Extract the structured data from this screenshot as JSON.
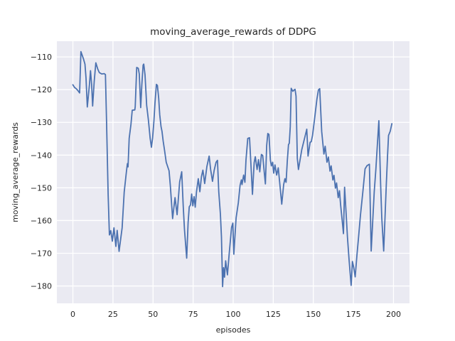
{
  "window": {
    "title": "moving_average_rewards of DDPG"
  },
  "colors": {
    "figure_background": "#ffffff",
    "axes_background": "#eaeaf2",
    "gridline": "#ffffff",
    "line": "#4c72b0",
    "text": "#262626"
  },
  "chart_data": {
    "type": "line",
    "title": "moving_average_rewards of DDPG",
    "xlabel": "episodes",
    "ylabel": "moving_average_rewards",
    "legend": null,
    "grid": true,
    "xlim": [
      -10,
      210
    ],
    "ylim": [
      -185.3,
      -105.2
    ],
    "x_ticks": [
      0,
      25,
      50,
      75,
      100,
      125,
      150,
      175,
      200
    ],
    "x_tick_labels": [
      "0",
      "25",
      "50",
      "75",
      "100",
      "125",
      "150",
      "175",
      "200"
    ],
    "y_ticks": [
      -110,
      -120,
      -130,
      -140,
      -150,
      -160,
      -170,
      -180
    ],
    "y_tick_labels": [
      "−110",
      "−120",
      "−130",
      "−140",
      "−150",
      "−160",
      "−170",
      "−180"
    ],
    "series": [
      {
        "name": "moving_average_rewards",
        "color": "#4c72b0",
        "line_width": 1.8,
        "points": [
          [
            0,
            -118.5
          ],
          [
            1,
            -119.3
          ],
          [
            2,
            -119.7
          ],
          [
            3,
            -120.2
          ],
          [
            4.2,
            -121.0
          ],
          [
            5,
            -108.4
          ],
          [
            6,
            -109.8
          ],
          [
            6.6,
            -110.6
          ],
          [
            7.5,
            -112.2
          ],
          [
            8.2,
            -116.5
          ],
          [
            9,
            -125.3
          ],
          [
            10.3,
            -118.5
          ],
          [
            11,
            -114.2
          ],
          [
            11.7,
            -118.5
          ],
          [
            12.3,
            -125.0
          ],
          [
            13.3,
            -117.5
          ],
          [
            14.3,
            -111.8
          ],
          [
            15.5,
            -113.7
          ],
          [
            16.5,
            -114.8
          ],
          [
            18,
            -115.2
          ],
          [
            19.5,
            -115.1
          ],
          [
            20.3,
            -115.4
          ],
          [
            21,
            -130.0
          ],
          [
            22,
            -152.0
          ],
          [
            22.8,
            -164.4
          ],
          [
            23.6,
            -163.1
          ],
          [
            24.6,
            -166.3
          ],
          [
            25.6,
            -162.2
          ],
          [
            26.8,
            -167.9
          ],
          [
            27.6,
            -163.0
          ],
          [
            28.8,
            -169.4
          ],
          [
            29.8,
            -165.7
          ],
          [
            30.7,
            -162.2
          ],
          [
            32,
            -151.3
          ],
          [
            33.4,
            -145.1
          ],
          [
            34,
            -142.6
          ],
          [
            34.4,
            -143.6
          ],
          [
            35.1,
            -134.9
          ],
          [
            36.2,
            -130.6
          ],
          [
            37,
            -126.3
          ],
          [
            38.6,
            -126.2
          ],
          [
            38.9,
            -125.2
          ],
          [
            39.8,
            -113.2
          ],
          [
            40.8,
            -113.5
          ],
          [
            41.4,
            -115.2
          ],
          [
            42.3,
            -125.5
          ],
          [
            43,
            -118.5
          ],
          [
            43.8,
            -112.5
          ],
          [
            44.2,
            -112.2
          ],
          [
            45,
            -115.5
          ],
          [
            46,
            -124.8
          ],
          [
            47.1,
            -129.2
          ],
          [
            48.2,
            -134.9
          ],
          [
            49,
            -137.6
          ],
          [
            49.7,
            -134.9
          ],
          [
            50.5,
            -129.9
          ],
          [
            51.2,
            -124.1
          ],
          [
            52.1,
            -118.4
          ],
          [
            52.7,
            -118.7
          ],
          [
            53.5,
            -122.6
          ],
          [
            54.2,
            -127.7
          ],
          [
            55,
            -131.3
          ],
          [
            55.6,
            -132.8
          ],
          [
            56.3,
            -135.7
          ],
          [
            57.2,
            -138.6
          ],
          [
            58.2,
            -142.2
          ],
          [
            59.1,
            -143.5
          ],
          [
            60,
            -144.8
          ],
          [
            60.8,
            -149.4
          ],
          [
            62.2,
            -159.4
          ],
          [
            63.7,
            -153.0
          ],
          [
            65,
            -158.2
          ],
          [
            66.6,
            -148.2
          ],
          [
            67.9,
            -145.1
          ],
          [
            68.8,
            -155.5
          ],
          [
            69.6,
            -162.8
          ],
          [
            71,
            -171.5
          ],
          [
            71.9,
            -160.6
          ],
          [
            72.6,
            -155.8
          ],
          [
            73.4,
            -155.2
          ],
          [
            74.1,
            -151.9
          ],
          [
            74.8,
            -155.5
          ],
          [
            75.6,
            -152.7
          ],
          [
            76.3,
            -155.9
          ],
          [
            77.1,
            -151.2
          ],
          [
            78.2,
            -147.2
          ],
          [
            79.2,
            -151.2
          ],
          [
            80.2,
            -146.5
          ],
          [
            81.1,
            -144.6
          ],
          [
            82.2,
            -148.7
          ],
          [
            83.6,
            -143.5
          ],
          [
            85,
            -140.3
          ],
          [
            85.9,
            -144.3
          ],
          [
            87.1,
            -148.0
          ],
          [
            88.1,
            -144.7
          ],
          [
            89.3,
            -142.2
          ],
          [
            90.2,
            -141.6
          ],
          [
            91,
            -151.2
          ],
          [
            92,
            -158.0
          ],
          [
            92.7,
            -165.0
          ],
          [
            93.4,
            -180.2
          ],
          [
            94,
            -174.4
          ],
          [
            94.6,
            -177.3
          ],
          [
            95.3,
            -172.3
          ],
          [
            96.4,
            -176.6
          ],
          [
            97.5,
            -170.1
          ],
          [
            99,
            -162.1
          ],
          [
            99.8,
            -160.8
          ],
          [
            100.4,
            -170.3
          ],
          [
            101.8,
            -159.2
          ],
          [
            103.2,
            -154.6
          ],
          [
            104.3,
            -149.2
          ],
          [
            105.1,
            -147.6
          ],
          [
            105.5,
            -149.0
          ],
          [
            106.5,
            -146.1
          ],
          [
            107.3,
            -148.3
          ],
          [
            108,
            -141.5
          ],
          [
            109.1,
            -134.9
          ],
          [
            110.2,
            -134.7
          ],
          [
            111,
            -142.2
          ],
          [
            112,
            -152.0
          ],
          [
            113.1,
            -142.3
          ],
          [
            113.8,
            -140.5
          ],
          [
            114.9,
            -144.4
          ],
          [
            115.8,
            -141.4
          ],
          [
            116.6,
            -145.1
          ],
          [
            117.6,
            -139.8
          ],
          [
            118.4,
            -140.1
          ],
          [
            119.4,
            -145.2
          ],
          [
            120.1,
            -148.8
          ],
          [
            120.9,
            -137.1
          ],
          [
            121.6,
            -133.4
          ],
          [
            122.3,
            -133.7
          ],
          [
            123.2,
            -141.5
          ],
          [
            123.8,
            -143.3
          ],
          [
            124.6,
            -142.2
          ],
          [
            125.3,
            -145.5
          ],
          [
            126.1,
            -143.0
          ],
          [
            127.1,
            -146.1
          ],
          [
            128.1,
            -143.9
          ],
          [
            129.1,
            -148.8
          ],
          [
            130.3,
            -155.0
          ],
          [
            131.5,
            -149.0
          ],
          [
            132.3,
            -147.2
          ],
          [
            133,
            -148.3
          ],
          [
            133.8,
            -141.5
          ],
          [
            134.5,
            -136.8
          ],
          [
            135,
            -136.4
          ],
          [
            135.6,
            -131.3
          ],
          [
            136.2,
            -119.6
          ],
          [
            137.2,
            -120.5
          ],
          [
            138,
            -120.1
          ],
          [
            138.6,
            -119.9
          ],
          [
            139.2,
            -122.0
          ],
          [
            140,
            -141.0
          ],
          [
            140.7,
            -144.4
          ],
          [
            142.8,
            -138.3
          ],
          [
            145,
            -133.9
          ],
          [
            145.9,
            -132.1
          ],
          [
            146.7,
            -140.3
          ],
          [
            148,
            -136.1
          ],
          [
            148.7,
            -135.9
          ],
          [
            149.5,
            -134.0
          ],
          [
            151,
            -128.0
          ],
          [
            152.2,
            -123.0
          ],
          [
            153.2,
            -120.1
          ],
          [
            154,
            -119.7
          ],
          [
            155.2,
            -132.8
          ],
          [
            156.6,
            -139.7
          ],
          [
            157.4,
            -137.3
          ],
          [
            158.5,
            -142.2
          ],
          [
            159.4,
            -140.6
          ],
          [
            160.4,
            -144.9
          ],
          [
            161.1,
            -143.3
          ],
          [
            162.2,
            -147.6
          ],
          [
            162.9,
            -146.2
          ],
          [
            163.8,
            -150.1
          ],
          [
            164.5,
            -148.5
          ],
          [
            165.5,
            -153.0
          ],
          [
            166.3,
            -150.9
          ],
          [
            167,
            -155.2
          ],
          [
            168.2,
            -161.0
          ],
          [
            168.8,
            -164.0
          ],
          [
            169.5,
            -149.8
          ],
          [
            170.5,
            -158.0
          ],
          [
            171.3,
            -165.0
          ],
          [
            172.3,
            -172.0
          ],
          [
            173.6,
            -179.8
          ],
          [
            174.4,
            -172.5
          ],
          [
            175.2,
            -174.3
          ],
          [
            176.1,
            -177.2
          ],
          [
            177.2,
            -170.5
          ],
          [
            178.1,
            -165.7
          ],
          [
            179.4,
            -158.4
          ],
          [
            180.9,
            -151.2
          ],
          [
            182.3,
            -144.2
          ],
          [
            183.5,
            -143.2
          ],
          [
            185,
            -142.8
          ],
          [
            186.1,
            -169.3
          ],
          [
            188,
            -151.2
          ],
          [
            189,
            -144.3
          ],
          [
            190,
            -136.5
          ],
          [
            190.9,
            -129.5
          ],
          [
            192,
            -149.0
          ],
          [
            192.7,
            -159.1
          ],
          [
            193.9,
            -169.3
          ],
          [
            195.6,
            -148.3
          ],
          [
            196.3,
            -140.3
          ],
          [
            196.9,
            -134.0
          ],
          [
            198,
            -132.7
          ],
          [
            199,
            -130.4
          ]
        ]
      }
    ]
  }
}
